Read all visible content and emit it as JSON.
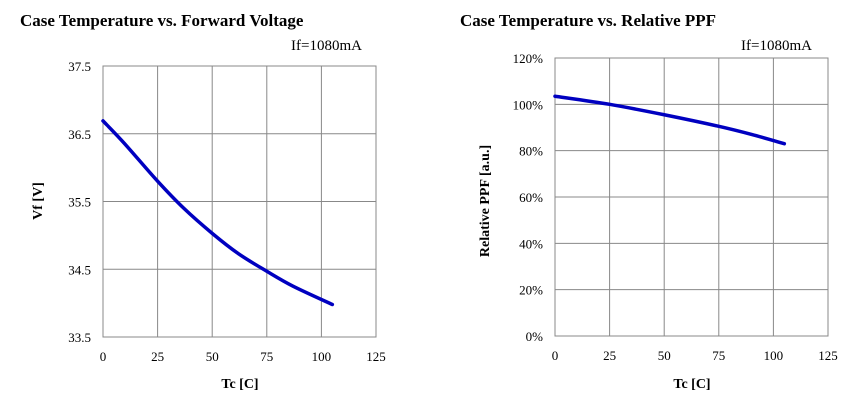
{
  "chart_data": [
    {
      "type": "line",
      "title": "Case Temperature vs. Forward Voltage",
      "annotation": "If=1080mA",
      "xlabel": "Tc [C]",
      "ylabel": "Vf [V]",
      "xlim": [
        0,
        125
      ],
      "ylim": [
        33.5,
        37.5
      ],
      "xticks": [
        0,
        25,
        50,
        75,
        100,
        125
      ],
      "xtick_labels": [
        "0",
        "25",
        "50",
        "75",
        "100",
        "125"
      ],
      "yticks": [
        33.5,
        34.5,
        35.5,
        36.5,
        37.5
      ],
      "ytick_labels": [
        "33.5",
        "34.5",
        "35.5",
        "36.5",
        "37.5"
      ],
      "grid": true,
      "line_color": "#0000c0",
      "series": [
        {
          "x": [
            0,
            10,
            25,
            37,
            50,
            62,
            75,
            87,
            105
          ],
          "y": [
            36.69,
            36.35,
            35.8,
            35.4,
            35.03,
            34.73,
            34.47,
            34.25,
            33.98
          ]
        }
      ]
    },
    {
      "type": "line",
      "title": "Case Temperature vs. Relative PPF",
      "annotation": "If=1080mA",
      "xlabel": "Tc [C]",
      "ylabel": "Relative  PPF [a.u.]",
      "xlim": [
        0,
        125
      ],
      "ylim": [
        0,
        120
      ],
      "xticks": [
        0,
        25,
        50,
        75,
        100,
        125
      ],
      "xtick_labels": [
        "0",
        "25",
        "50",
        "75",
        "100",
        "125"
      ],
      "yticks": [
        0,
        20,
        40,
        60,
        80,
        100,
        120
      ],
      "ytick_labels": [
        "0%",
        "20%",
        "40%",
        "60%",
        "80%",
        "100%",
        "120%"
      ],
      "grid": true,
      "line_color": "#0000c0",
      "series": [
        {
          "x": [
            0,
            25,
            50,
            75,
            90,
            105
          ],
          "y": [
            103.5,
            100,
            95.5,
            90.5,
            87,
            83
          ]
        }
      ]
    }
  ]
}
